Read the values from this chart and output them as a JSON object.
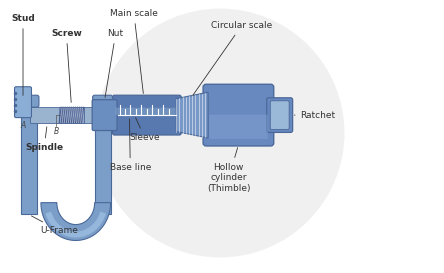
{
  "bg_color": "#ffffff",
  "fig_width": 4.44,
  "fig_height": 2.73,
  "dpi": 100,
  "colors": {
    "frame_fill": "#7b9ec9",
    "frame_edge": "#4a70a8",
    "frame_light": "#a8c8e8",
    "stud_fill": "#8aaed6",
    "stud_edge": "#4a70a8",
    "spindle_fill": "#9ab4d0",
    "screw_hatch1": "#6678aa",
    "screw_hatch2": "#aabbdd",
    "nut_fill": "#6a8ec0",
    "sleeve_fill": "#5878b0",
    "sleeve_light": "#88aacc",
    "thimble_fill": "#6888c0",
    "thimble_light": "#8aaad8",
    "thimble_cone": "#7898c8",
    "ratchet_fill": "#6888c0",
    "ratchet_inner": "#9ab8d8",
    "edge": "#4a6898",
    "ann": "#333333",
    "watermark": "#d8d8d8",
    "white": "#ffffff",
    "tick": "#ffffff"
  },
  "labels": {
    "stud": "Stud",
    "screw": "Screw",
    "nut": "Nut",
    "main_scale": "Main scale",
    "circular_scale": "Circular scale",
    "spindle": "Spindle",
    "baseline": "Base line",
    "sleeve": "Sleeve",
    "hollow_cylinder": "Hollow\ncylinder\n(Thimble)",
    "ratchet": "Ratchet",
    "uframe": "U-Frame",
    "A": "A",
    "B": "B"
  }
}
